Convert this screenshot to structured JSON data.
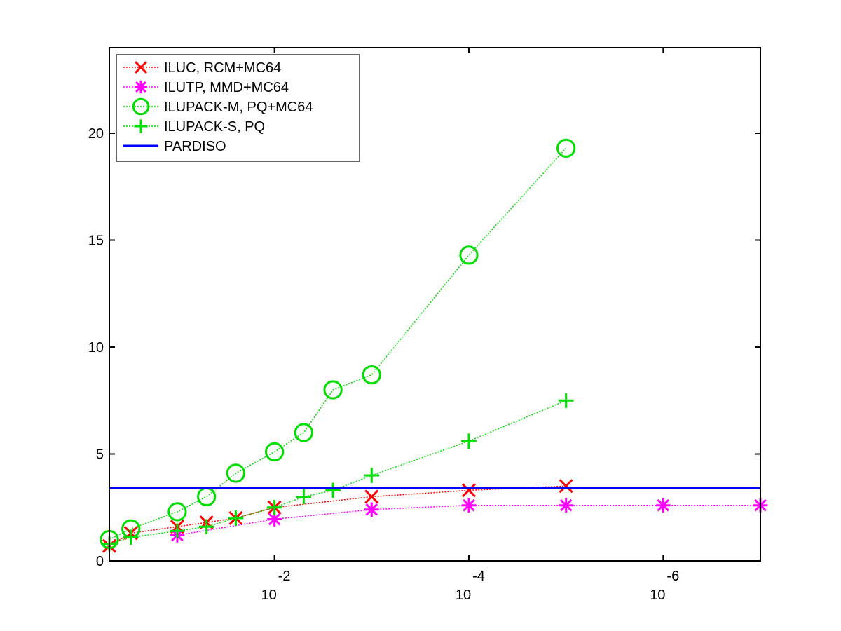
{
  "chart_data": {
    "type": "line",
    "xscale": "log",
    "x_reversed": true,
    "xlim": [
      0.5,
      1e-07
    ],
    "ylim": [
      0,
      24
    ],
    "yticks": [
      0,
      5,
      10,
      15,
      20
    ],
    "ytick_labels": [
      "0",
      "5",
      "10",
      "15",
      "20"
    ],
    "xticks": [
      0.01,
      0.0001,
      1e-06
    ],
    "xtick_labels": [
      {
        "base": "10",
        "exponent": "-2"
      },
      {
        "base": "10",
        "exponent": "-4"
      },
      {
        "base": "10",
        "exponent": "-6"
      }
    ],
    "grid": false,
    "legend_position": "top-left",
    "series": [
      {
        "name": "ILUC, RCM+MC64",
        "color": "#ff0000",
        "marker": "x",
        "linestyle": "dotted",
        "x": [
          0.5,
          0.3,
          0.1,
          0.05,
          0.025,
          0.01,
          0.001,
          0.0001,
          1e-05
        ],
        "y": [
          0.7,
          1.3,
          1.6,
          1.8,
          2.0,
          2.5,
          3.0,
          3.3,
          3.5
        ]
      },
      {
        "name": "ILUTP, MMD+MC64",
        "color": "#ff00ff",
        "marker": "asterisk",
        "linestyle": "dotted",
        "x": [
          0.1,
          0.01,
          0.001,
          0.0001,
          1e-05,
          1e-06,
          1e-07
        ],
        "y": [
          1.2,
          1.95,
          2.4,
          2.6,
          2.6,
          2.6,
          2.6
        ]
      },
      {
        "name": "ILUPACK-M, PQ+MC64",
        "color": "#00dd00",
        "marker": "circle",
        "linestyle": "dotted",
        "x": [
          0.5,
          0.3,
          0.1,
          0.05,
          0.025,
          0.01,
          0.005,
          0.0025,
          0.001,
          0.0001,
          1e-05
        ],
        "y": [
          1.0,
          1.5,
          2.3,
          3.0,
          4.1,
          5.1,
          6.0,
          8.0,
          8.7,
          14.3,
          19.3
        ]
      },
      {
        "name": "ILUPACK-S, PQ",
        "color": "#00dd00",
        "marker": "plus",
        "linestyle": "dotted",
        "x": [
          0.5,
          0.3,
          0.1,
          0.05,
          0.025,
          0.01,
          0.005,
          0.0025,
          0.001,
          0.0001,
          1e-05
        ],
        "y": [
          0.8,
          1.1,
          1.4,
          1.6,
          2.0,
          2.5,
          3.0,
          3.3,
          4.0,
          5.6,
          7.5
        ]
      },
      {
        "name": "PARDISO",
        "color": "#0000ff",
        "marker": "none",
        "linestyle": "solid",
        "x": [
          0.5,
          1e-07
        ],
        "y": [
          3.4,
          3.4
        ]
      }
    ]
  }
}
